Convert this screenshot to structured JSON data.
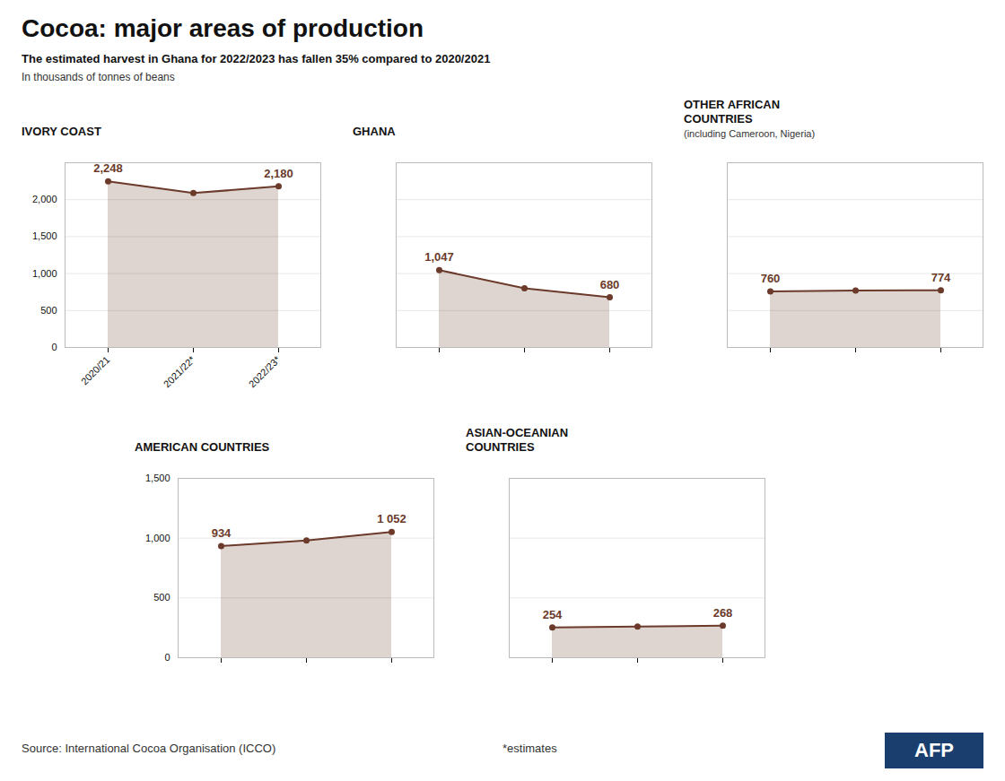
{
  "title": "Cocoa: major areas of production",
  "subtitle": "The estimated harvest in Ghana for 2022/2023 has fallen 35% compared to 2020/2021",
  "annotations": [
    {
      "text": "In thousands of tonnes of beans"
    },
    {
      "text": "Source: International Cocoa Organisation (ICCO)"
    },
    {
      "text": "*estimates"
    },
    {
      "text": "AFP",
      "color": "#1A3E6E"
    }
  ],
  "chart_data": [
    {
      "type": "area",
      "title": "IVORY COAST",
      "categories": [
        "2020/21",
        "2021/22*",
        "2022/23*"
      ],
      "values": [
        2248,
        2090,
        2180
      ],
      "value_labels": [
        "2,248",
        null,
        "2,180"
      ],
      "data_labels": true,
      "color": "#6B3A2A",
      "marker": "circle",
      "ylim": [
        0,
        2500
      ],
      "yticks": [
        0,
        500,
        {
          "value": 1000,
          "label": "1,000"
        },
        {
          "value": 1500,
          "label": "1,500"
        },
        {
          "value": 2000,
          "label": "2,000"
        }
      ],
      "grid": true
    },
    {
      "type": "area",
      "title": "GHANA",
      "categories": [
        "2020/21",
        "2021/22*",
        "2022/23*"
      ],
      "values": [
        1047,
        800,
        680
      ],
      "value_labels": [
        "1,047",
        null,
        "680"
      ],
      "data_labels": true,
      "color": "#6B3A2A",
      "marker": "circle",
      "ylim": [
        0,
        2500
      ],
      "yticks": [
        0,
        500,
        {
          "value": 1000,
          "label": "1,000"
        },
        {
          "value": 1500,
          "label": "1,500"
        },
        {
          "value": 2000,
          "label": "2,000"
        }
      ],
      "grid": true,
      "tick_labels": false
    },
    {
      "type": "area",
      "title": "OTHER AFRICAN\nCOUNTRIES",
      "subtitle": "(including Cameroon, Nigeria)",
      "categories": [
        "2020/21",
        "2021/22*",
        "2022/23*"
      ],
      "values": [
        760,
        770,
        774
      ],
      "value_labels": [
        "760",
        null,
        "774"
      ],
      "data_labels": true,
      "color": "#6B3A2A",
      "marker": "circle",
      "ylim": [
        0,
        2500
      ],
      "yticks": [
        0,
        500,
        {
          "value": 1000,
          "label": "1,000"
        },
        {
          "value": 1500,
          "label": "1,500"
        },
        {
          "value": 2000,
          "label": "2,000"
        }
      ],
      "grid": true,
      "tick_labels": false
    },
    {
      "type": "area",
      "title": "AMERICAN COUNTRIES",
      "categories": [
        "2020/21",
        "2021/22*",
        "2022/23*"
      ],
      "values": [
        934,
        980,
        1052
      ],
      "value_labels": [
        "934",
        null,
        "1 052"
      ],
      "data_labels": true,
      "color": "#6B3A2A",
      "marker": "circle",
      "ylim": [
        0,
        1500
      ],
      "yticks": [
        0,
        500,
        {
          "value": 1000,
          "label": "1,000"
        },
        {
          "value": 1500,
          "label": "1,500"
        }
      ],
      "grid": true,
      "tick_labels": "y"
    },
    {
      "type": "area",
      "title": "ASIAN-OCEANIAN\nCOUNTRIES",
      "categories": [
        "2020/21",
        "2021/22*",
        "2022/23*"
      ],
      "values": [
        254,
        260,
        268
      ],
      "value_labels": [
        "254",
        null,
        "268"
      ],
      "data_labels": true,
      "color": "#6B3A2A",
      "marker": "circle",
      "ylim": [
        0,
        1500
      ],
      "yticks": [
        0,
        500,
        {
          "value": 1000,
          "label": "1,000"
        },
        {
          "value": 1500,
          "label": "1,500"
        }
      ],
      "grid": true,
      "tick_labels": false
    }
  ]
}
